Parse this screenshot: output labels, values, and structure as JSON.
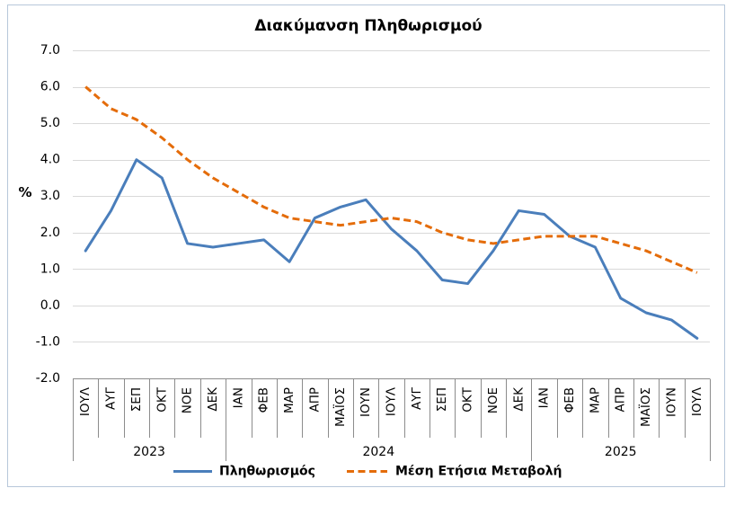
{
  "chart_data": {
    "type": "line",
    "title": "Διακύμανση Πληθωρισμού",
    "ylabel": "%",
    "ylim": [
      -2.0,
      7.0
    ],
    "yticks": [
      "7.0",
      "6.0",
      "5.0",
      "4.0",
      "3.0",
      "2.0",
      "1.0",
      "0.0",
      "-1.0",
      "-2.0"
    ],
    "category_groups": [
      {
        "label": "2023",
        "categories": [
          "ΙΟΥΛ",
          "ΑΥΓ",
          "ΣΕΠ",
          "ΟΚΤ",
          "ΝΟΕ",
          "ΔΕΚ"
        ]
      },
      {
        "label": "2024",
        "categories": [
          "ΙΑΝ",
          "ΦΕΒ",
          "ΜΑΡ",
          "ΑΠΡ",
          "ΜΑΪΟΣ",
          "ΙΟΥΝ",
          "ΙΟΥΛ",
          "ΑΥΓ",
          "ΣΕΠ",
          "ΟΚΤ",
          "ΝΟΕ",
          "ΔΕΚ"
        ]
      },
      {
        "label": "2025",
        "categories": [
          "ΙΑΝ",
          "ΦΕΒ",
          "ΜΑΡ",
          "ΑΠΡ",
          "ΜΑΪΟΣ",
          "ΙΟΥΝ",
          "ΙΟΥΛ"
        ]
      }
    ],
    "series": [
      {
        "name": "Πληθωρισμός",
        "color": "#4a7ebb",
        "line_style": "solid",
        "values": [
          1.5,
          2.6,
          4.0,
          3.5,
          1.7,
          1.6,
          1.7,
          1.8,
          1.2,
          2.4,
          2.7,
          2.9,
          2.1,
          1.5,
          0.7,
          0.6,
          1.5,
          2.6,
          2.5,
          1.9,
          1.6,
          0.2,
          -0.2,
          -0.4,
          -0.9
        ]
      },
      {
        "name": "Μέση Ετήσια Μεταβολή",
        "color": "#e46c0a",
        "line_style": "dashed",
        "values": [
          6.0,
          5.4,
          5.1,
          4.6,
          4.0,
          3.5,
          3.1,
          2.7,
          2.4,
          2.3,
          2.2,
          2.3,
          2.4,
          2.3,
          2.0,
          1.8,
          1.7,
          1.8,
          1.9,
          1.9,
          1.9,
          1.7,
          1.5,
          1.2,
          0.9
        ]
      }
    ],
    "grid": true,
    "legend": "bottom"
  }
}
